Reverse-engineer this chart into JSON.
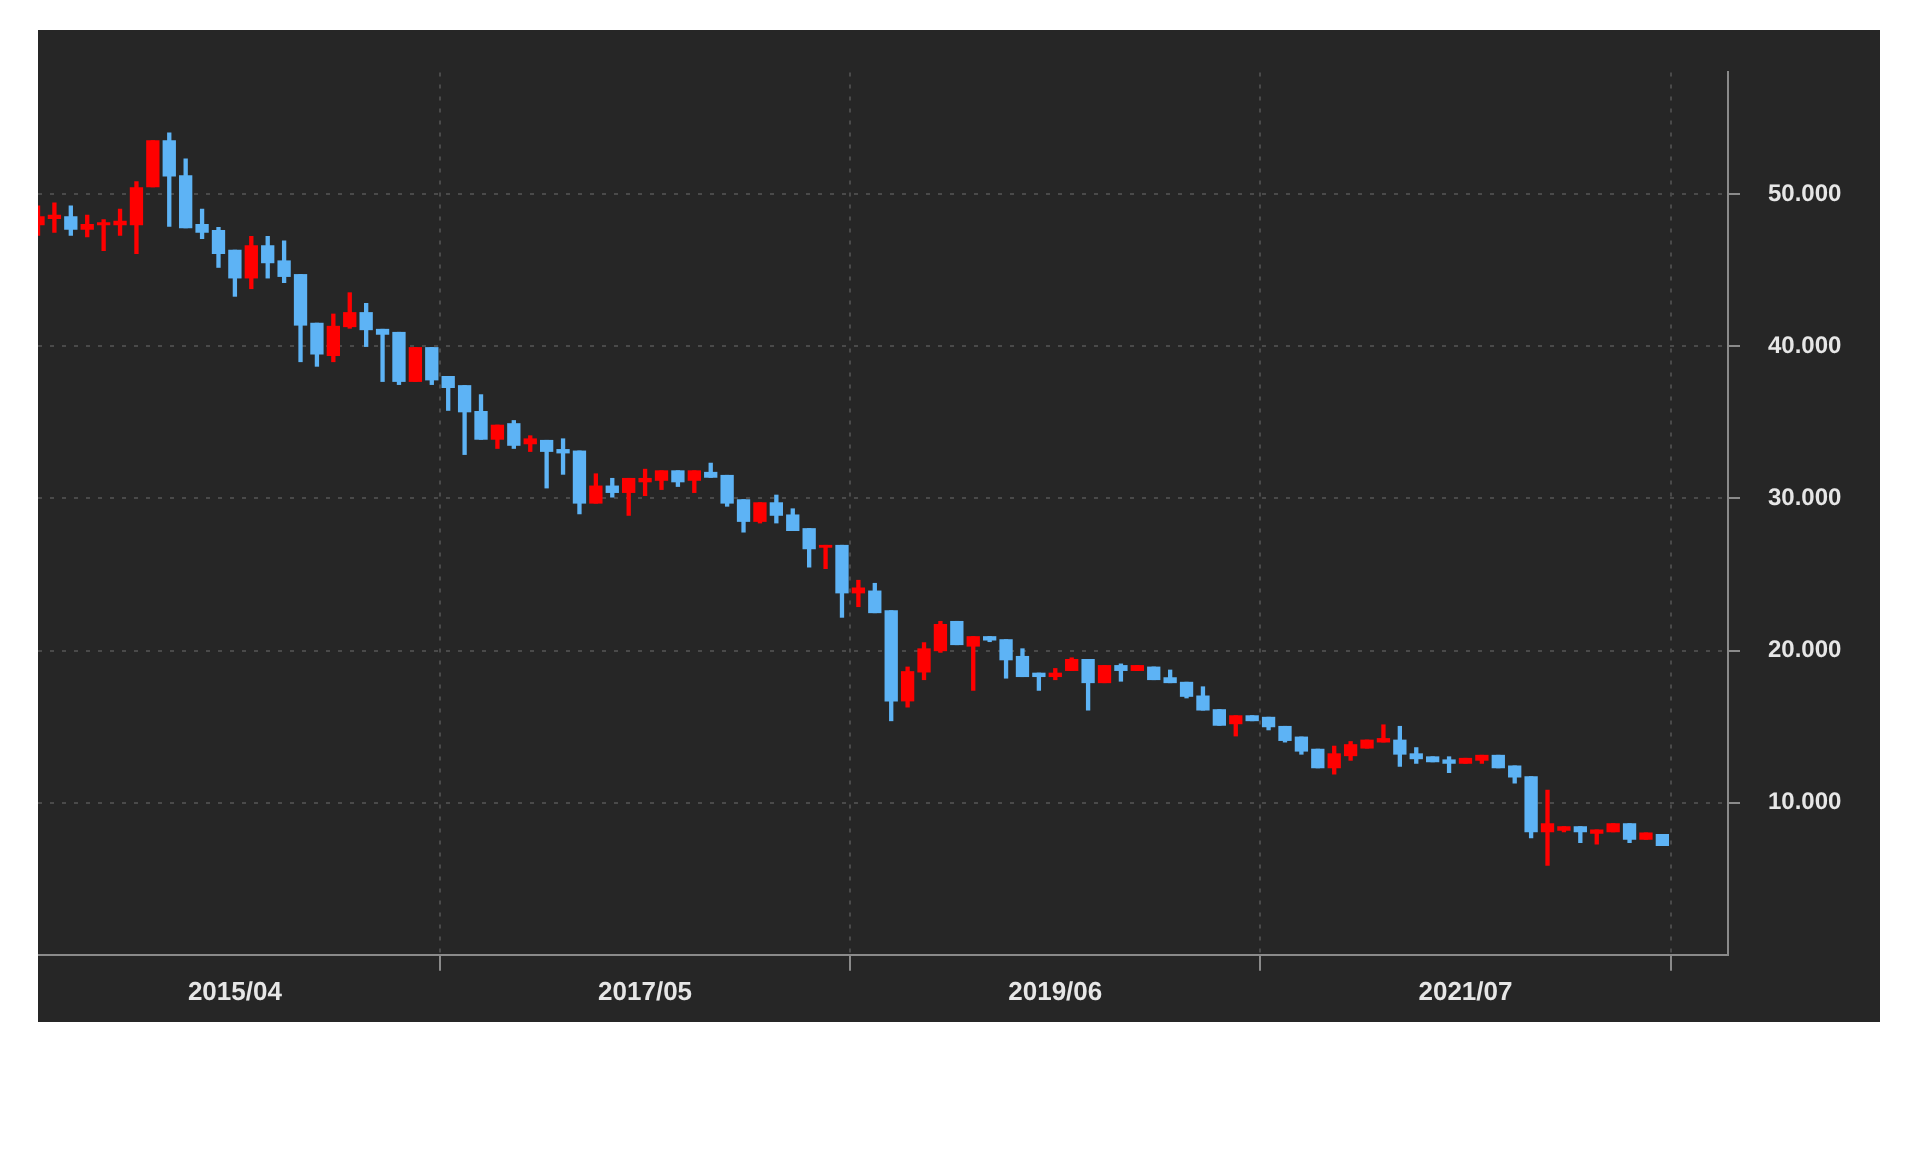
{
  "chart_data": {
    "type": "candlestick",
    "x": [
      "2014-04",
      "2014-05",
      "2014-06",
      "2014-07",
      "2014-08",
      "2014-09",
      "2014-10",
      "2014-11",
      "2014-12",
      "2015-01",
      "2015-02",
      "2015-03",
      "2015-04",
      "2015-05",
      "2015-06",
      "2015-07",
      "2015-08",
      "2015-09",
      "2015-10",
      "2015-11",
      "2015-12",
      "2016-01",
      "2016-02",
      "2016-03",
      "2016-04",
      "2016-05",
      "2016-06",
      "2016-07",
      "2016-08",
      "2016-09",
      "2016-10",
      "2016-11",
      "2016-12",
      "2017-01",
      "2017-02",
      "2017-03",
      "2017-04",
      "2017-05",
      "2017-06",
      "2017-07",
      "2017-08",
      "2017-09",
      "2017-10",
      "2017-11",
      "2017-12",
      "2018-01",
      "2018-02",
      "2018-03",
      "2018-04",
      "2018-05",
      "2018-06",
      "2018-07",
      "2018-08",
      "2018-09",
      "2018-10",
      "2018-11",
      "2018-12",
      "2019-01",
      "2019-02",
      "2019-03",
      "2019-04",
      "2019-05",
      "2019-06",
      "2019-07",
      "2019-08",
      "2019-09",
      "2019-10",
      "2019-11",
      "2019-12",
      "2020-01",
      "2020-02",
      "2020-03",
      "2020-04",
      "2020-05",
      "2020-06",
      "2020-07",
      "2020-08",
      "2020-09",
      "2020-10",
      "2020-11",
      "2020-12",
      "2021-01",
      "2021-02",
      "2021-03",
      "2021-04",
      "2021-05",
      "2021-06",
      "2021-07",
      "2021-08",
      "2021-09",
      "2021-10",
      "2021-11",
      "2021-12",
      "2022-01",
      "2022-02",
      "2022-03",
      "2022-04",
      "2022-05",
      "2022-06",
      "2022-07"
    ],
    "ohlc": [
      [
        48.0,
        49.2,
        47.3,
        48.5
      ],
      [
        48.4,
        49.4,
        47.5,
        48.6
      ],
      [
        48.5,
        49.2,
        47.3,
        47.7
      ],
      [
        47.7,
        48.6,
        47.2,
        48.0
      ],
      [
        48.0,
        48.3,
        46.3,
        48.1
      ],
      [
        48.0,
        49.0,
        47.3,
        48.2
      ],
      [
        48.0,
        50.8,
        46.1,
        50.4
      ],
      [
        50.5,
        53.5,
        50.5,
        53.5
      ],
      [
        53.5,
        54.0,
        47.9,
        51.2
      ],
      [
        51.2,
        52.3,
        47.8,
        47.8
      ],
      [
        48.0,
        49.0,
        47.1,
        47.5
      ],
      [
        47.6,
        47.8,
        45.2,
        46.1
      ],
      [
        46.3,
        46.3,
        43.3,
        44.5
      ],
      [
        44.5,
        47.2,
        43.8,
        46.6
      ],
      [
        46.6,
        47.2,
        44.5,
        45.5
      ],
      [
        45.6,
        46.9,
        44.2,
        44.6
      ],
      [
        44.7,
        44.7,
        39.0,
        41.4
      ],
      [
        41.5,
        41.5,
        38.7,
        39.5
      ],
      [
        39.4,
        42.1,
        39.0,
        41.3
      ],
      [
        41.3,
        43.5,
        41.2,
        42.2
      ],
      [
        42.2,
        42.8,
        40.0,
        41.1
      ],
      [
        41.1,
        41.1,
        37.7,
        40.8
      ],
      [
        40.9,
        40.9,
        37.5,
        37.7
      ],
      [
        37.7,
        39.9,
        37.7,
        39.9
      ],
      [
        39.9,
        39.9,
        37.5,
        37.8
      ],
      [
        38.0,
        38.0,
        35.8,
        37.3
      ],
      [
        37.4,
        37.4,
        32.9,
        35.7
      ],
      [
        35.7,
        36.8,
        33.9,
        33.9
      ],
      [
        33.9,
        34.8,
        33.3,
        34.8
      ],
      [
        34.9,
        35.1,
        33.3,
        33.5
      ],
      [
        33.6,
        34.1,
        33.1,
        33.9
      ],
      [
        33.8,
        33.8,
        30.7,
        33.1
      ],
      [
        33.2,
        33.9,
        31.6,
        33.0
      ],
      [
        33.1,
        33.1,
        29.0,
        29.7
      ],
      [
        29.7,
        31.6,
        29.7,
        30.8
      ],
      [
        30.8,
        31.3,
        30.1,
        30.4
      ],
      [
        30.4,
        31.3,
        28.9,
        31.3
      ],
      [
        31.1,
        31.9,
        30.2,
        31.3
      ],
      [
        31.2,
        31.8,
        30.6,
        31.8
      ],
      [
        31.8,
        31.8,
        30.8,
        31.1
      ],
      [
        31.2,
        31.8,
        30.4,
        31.8
      ],
      [
        31.7,
        32.3,
        31.4,
        31.4
      ],
      [
        31.5,
        31.5,
        29.5,
        29.7
      ],
      [
        29.9,
        29.9,
        27.8,
        28.5
      ],
      [
        28.5,
        29.7,
        28.4,
        29.7
      ],
      [
        29.7,
        30.2,
        28.4,
        28.9
      ],
      [
        28.9,
        29.3,
        27.9,
        27.9
      ],
      [
        28.0,
        28.0,
        25.5,
        26.7
      ],
      [
        26.8,
        26.9,
        25.4,
        26.9
      ],
      [
        26.9,
        26.9,
        22.2,
        23.8
      ],
      [
        23.8,
        24.6,
        22.9,
        24.1
      ],
      [
        23.9,
        24.4,
        22.5,
        22.5
      ],
      [
        22.6,
        22.6,
        15.4,
        16.7
      ],
      [
        16.7,
        18.9,
        16.3,
        18.6
      ],
      [
        18.6,
        20.5,
        18.1,
        20.1
      ],
      [
        20.0,
        21.9,
        19.9,
        21.7
      ],
      [
        21.9,
        21.9,
        20.4,
        20.4
      ],
      [
        20.3,
        20.9,
        17.4,
        20.9
      ],
      [
        20.9,
        20.9,
        20.6,
        20.7
      ],
      [
        20.7,
        20.7,
        18.2,
        19.4
      ],
      [
        19.6,
        20.1,
        18.3,
        18.3
      ],
      [
        18.5,
        18.5,
        17.4,
        18.3
      ],
      [
        18.3,
        18.8,
        18.1,
        18.5
      ],
      [
        18.7,
        19.5,
        18.7,
        19.4
      ],
      [
        19.4,
        19.4,
        16.1,
        17.9
      ],
      [
        17.9,
        19.0,
        17.9,
        19.0
      ],
      [
        19.0,
        19.1,
        18.0,
        18.7
      ],
      [
        18.7,
        19.0,
        18.7,
        19.0
      ],
      [
        18.9,
        18.9,
        18.1,
        18.1
      ],
      [
        18.2,
        18.7,
        17.9,
        17.9
      ],
      [
        17.9,
        17.9,
        16.9,
        17.0
      ],
      [
        17.0,
        17.6,
        16.1,
        16.1
      ],
      [
        16.1,
        16.1,
        15.1,
        15.1
      ],
      [
        15.2,
        15.7,
        14.4,
        15.7
      ],
      [
        15.7,
        15.7,
        15.4,
        15.4
      ],
      [
        15.6,
        15.6,
        14.8,
        15.0
      ],
      [
        15.0,
        15.0,
        14.0,
        14.1
      ],
      [
        14.3,
        14.3,
        13.2,
        13.4
      ],
      [
        13.5,
        13.5,
        12.3,
        12.3
      ],
      [
        12.3,
        13.7,
        11.9,
        13.2
      ],
      [
        13.1,
        14.0,
        12.8,
        13.8
      ],
      [
        13.6,
        14.1,
        13.6,
        14.1
      ],
      [
        14.0,
        15.1,
        14.0,
        14.2
      ],
      [
        14.1,
        15.0,
        12.4,
        13.2
      ],
      [
        13.2,
        13.6,
        12.6,
        12.9
      ],
      [
        13.0,
        13.0,
        12.7,
        12.7
      ],
      [
        12.8,
        13.0,
        12.0,
        12.6
      ],
      [
        12.6,
        12.9,
        12.6,
        12.9
      ],
      [
        12.8,
        13.1,
        12.6,
        13.1
      ],
      [
        13.1,
        13.1,
        12.3,
        12.3
      ],
      [
        12.4,
        12.4,
        11.3,
        11.7
      ],
      [
        11.7,
        11.7,
        7.7,
        8.1
      ],
      [
        8.1,
        10.8,
        5.9,
        8.6
      ],
      [
        8.2,
        8.4,
        8.1,
        8.4
      ],
      [
        8.4,
        8.4,
        7.4,
        8.1
      ],
      [
        8.0,
        8.2,
        7.3,
        8.2
      ],
      [
        8.1,
        8.6,
        8.1,
        8.6
      ],
      [
        8.6,
        8.6,
        7.4,
        7.6
      ],
      [
        7.6,
        8.0,
        7.6,
        8.0
      ],
      [
        7.9,
        7.9,
        7.2,
        7.2
      ]
    ],
    "colors": [
      "#ff0000",
      "#ff0000",
      "#5db3f5",
      "#ff0000",
      "#ff0000",
      "#ff0000",
      "#ff0000",
      "#ff0000",
      "#5db3f5",
      "#5db3f5",
      "#5db3f5",
      "#5db3f5",
      "#5db3f5",
      "#ff0000",
      "#5db3f5",
      "#5db3f5",
      "#5db3f5",
      "#5db3f5",
      "#ff0000",
      "#ff0000",
      "#5db3f5",
      "#5db3f5",
      "#5db3f5",
      "#ff0000",
      "#5db3f5",
      "#5db3f5",
      "#5db3f5",
      "#5db3f5",
      "#ff0000",
      "#5db3f5",
      "#ff0000",
      "#5db3f5",
      "#5db3f5",
      "#5db3f5",
      "#ff0000",
      "#5db3f5",
      "#ff0000",
      "#ff0000",
      "#ff0000",
      "#5db3f5",
      "#ff0000",
      "#5db3f5",
      "#5db3f5",
      "#5db3f5",
      "#ff0000",
      "#5db3f5",
      "#5db3f5",
      "#5db3f5",
      "#ff0000",
      "#5db3f5",
      "#ff0000",
      "#5db3f5",
      "#5db3f5",
      "#ff0000",
      "#ff0000",
      "#ff0000",
      "#5db3f5",
      "#ff0000",
      "#5db3f5",
      "#5db3f5",
      "#5db3f5",
      "#5db3f5",
      "#ff0000",
      "#ff0000",
      "#5db3f5",
      "#ff0000",
      "#5db3f5",
      "#ff0000",
      "#5db3f5",
      "#5db3f5",
      "#5db3f5",
      "#5db3f5",
      "#5db3f5",
      "#ff0000",
      "#5db3f5",
      "#5db3f5",
      "#5db3f5",
      "#5db3f5",
      "#5db3f5",
      "#ff0000",
      "#ff0000",
      "#ff0000",
      "#ff0000",
      "#5db3f5",
      "#5db3f5",
      "#5db3f5",
      "#5db3f5",
      "#ff0000",
      "#ff0000",
      "#5db3f5",
      "#5db3f5",
      "#5db3f5",
      "#ff0000",
      "#ff0000",
      "#5db3f5",
      "#ff0000",
      "#ff0000",
      "#5db3f5",
      "#ff0000",
      "#5db3f5"
    ],
    "xlim": [
      "2014-04",
      "2022-11"
    ],
    "xticks": [
      {
        "value": "2015-04",
        "label": "2015/04"
      },
      {
        "value": "2017-05",
        "label": "2017/05"
      },
      {
        "value": "2019-06",
        "label": "2019/06"
      },
      {
        "value": "2021-07",
        "label": "2021/07"
      }
    ],
    "ylim": [
      0,
      58
    ],
    "yticks": [
      {
        "value": 10,
        "label": "10.000"
      },
      {
        "value": 20,
        "label": "20.000"
      },
      {
        "value": 30,
        "label": "30.000"
      },
      {
        "value": 40,
        "label": "40.000"
      },
      {
        "value": 50,
        "label": "50.000"
      }
    ],
    "grid": true
  }
}
